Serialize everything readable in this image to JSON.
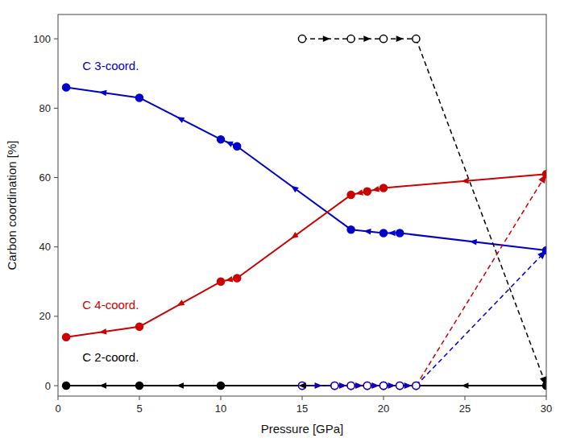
{
  "chart_data": {
    "type": "line",
    "xlabel": "Pressure [GPa]",
    "ylabel": "Carbon coordination [%]",
    "xlim": [
      0,
      30
    ],
    "ylim": [
      -3,
      107
    ],
    "xticks": [
      0,
      5,
      10,
      15,
      20,
      25,
      30
    ],
    "yticks": [
      0,
      20,
      40,
      60,
      80,
      100
    ],
    "grid": false,
    "series": [
      {
        "type": "line",
        "x": [
          0.5,
          5,
          10,
          11,
          18,
          20,
          21,
          30
        ],
        "values": [
          86,
          83,
          71,
          69,
          45,
          44,
          44,
          39
        ],
        "color": "#0000cc",
        "marker": "circle",
        "line_style": "solid"
      },
      {
        "type": "line",
        "x": [
          0.5,
          5,
          10,
          11,
          18,
          19,
          20,
          30
        ],
        "values": [
          14,
          17,
          30,
          31,
          55,
          56,
          57,
          61
        ],
        "color": "#cc0000",
        "marker": "circle",
        "line_style": "solid"
      },
      {
        "type": "line",
        "x": [
          0.5,
          5,
          10,
          20,
          30
        ],
        "values": [
          0,
          0,
          0,
          0,
          0
        ],
        "color": "#000000",
        "marker": "circle",
        "line_style": "solid"
      },
      {
        "type": "line",
        "x": [
          15,
          18,
          20,
          22
        ],
        "values": [
          100,
          100,
          100,
          100
        ],
        "color": "#000000",
        "marker": "open-circle",
        "line_style": "dashed"
      },
      {
        "type": "line",
        "x": [
          22,
          30
        ],
        "values": [
          100,
          0
        ],
        "color": "#000000",
        "marker": "none",
        "line_style": "dashed"
      },
      {
        "type": "line",
        "x": [
          15,
          17,
          18,
          19,
          20,
          21,
          22
        ],
        "values": [
          0,
          0,
          0,
          0,
          0,
          0,
          0
        ],
        "color": "#cc0000",
        "marker": "open-circle",
        "line_style": "dashed"
      },
      {
        "type": "line",
        "x": [
          15,
          17,
          18,
          19,
          20,
          21,
          22
        ],
        "values": [
          0,
          0,
          0,
          0,
          0,
          0,
          0
        ],
        "color": "#0000cc",
        "marker": "open-circle",
        "line_style": "dashed"
      },
      {
        "type": "line",
        "x": [
          22,
          30
        ],
        "values": [
          0,
          61
        ],
        "color": "#cc0000",
        "marker": "none",
        "line_style": "dashed"
      },
      {
        "type": "line",
        "x": [
          22,
          30
        ],
        "values": [
          0,
          39
        ],
        "color": "#0000cc",
        "marker": "none",
        "line_style": "dashed"
      }
    ],
    "annotations": [
      {
        "text": "C 3-coord.",
        "x": 1.5,
        "y": 91,
        "color": "#0000cc"
      },
      {
        "text": "C 4-coord.",
        "x": 1.5,
        "y": 22,
        "color": "#cc0000"
      },
      {
        "text": "C 2-coord.",
        "x": 1.5,
        "y": 7,
        "color": "#000000"
      }
    ]
  }
}
